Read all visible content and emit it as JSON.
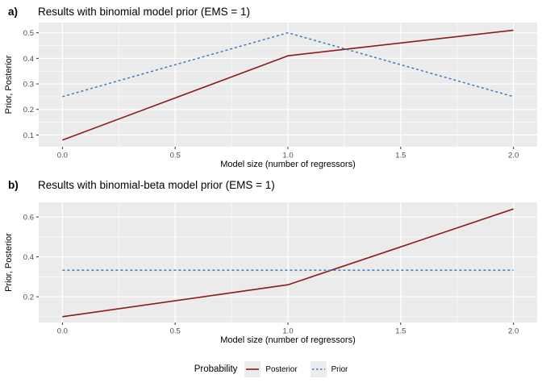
{
  "colors": {
    "panel_bg": "#EBEBEB",
    "grid": "#FFFFFF",
    "tick_mark": "#333333",
    "tick_text": "#4D4D4D",
    "posterior": "#8B1A1A",
    "prior": "#4477BB"
  },
  "legend": {
    "title": "Probability",
    "entries": [
      {
        "label": "Posterior",
        "style": "solid",
        "color": "#8B1A1A"
      },
      {
        "label": "Prior",
        "style": "dashed",
        "color": "#4477BB"
      }
    ]
  },
  "chart_data": [
    {
      "type": "line",
      "panel_tag": "a)",
      "title": "Results with binomial model prior (EMS = 1)",
      "xlabel": "Model size (number of regressors)",
      "ylabel": "Prior, Posterior",
      "x": [
        0,
        1,
        2
      ],
      "series": [
        {
          "name": "Posterior",
          "values": [
            0.08,
            0.41,
            0.51
          ],
          "color": "#8B1A1A",
          "style": "solid",
          "width": 1.6
        },
        {
          "name": "Prior",
          "values": [
            0.25,
            0.5,
            0.25
          ],
          "color": "#4477BB",
          "style": "dashed",
          "width": 1.5
        }
      ],
      "xlim": [
        -0.105,
        2.105
      ],
      "ylim": [
        0.054,
        0.54
      ],
      "xticks": {
        "values": [
          0,
          0.5,
          1,
          1.5,
          2
        ],
        "labels": [
          "0.0",
          "0.5",
          "1.0",
          "1.5",
          "2.0"
        ]
      },
      "yticks": {
        "values": [
          0.1,
          0.2,
          0.3,
          0.4,
          0.5
        ],
        "labels": [
          "0.1",
          "0.2",
          "0.3",
          "0.4",
          "0.5"
        ]
      },
      "grid": "major+minor",
      "legend_position": "bottom"
    },
    {
      "type": "line",
      "panel_tag": "b)",
      "title": "Results with binomial-beta model prior (EMS = 1)",
      "xlabel": "Model size (number of regressors)",
      "ylabel": "Prior, Posterior",
      "x": [
        0,
        1,
        2
      ],
      "series": [
        {
          "name": "Posterior",
          "values": [
            0.1,
            0.26,
            0.64
          ],
          "color": "#8B1A1A",
          "style": "solid",
          "width": 1.6
        },
        {
          "name": "Prior",
          "values": [
            0.333,
            0.333,
            0.333
          ],
          "color": "#4477BB",
          "style": "dashed",
          "width": 1.5
        }
      ],
      "xlim": [
        -0.105,
        2.105
      ],
      "ylim": [
        0.071,
        0.673
      ],
      "xticks": {
        "values": [
          0,
          0.5,
          1,
          1.5,
          2
        ],
        "labels": [
          "0.0",
          "0.5",
          "1.0",
          "1.5",
          "2.0"
        ]
      },
      "yticks": {
        "values": [
          0.2,
          0.4,
          0.6
        ],
        "labels": [
          "0.2",
          "0.4",
          "0.6"
        ]
      },
      "grid": "major+minor",
      "legend_position": "bottom"
    }
  ]
}
